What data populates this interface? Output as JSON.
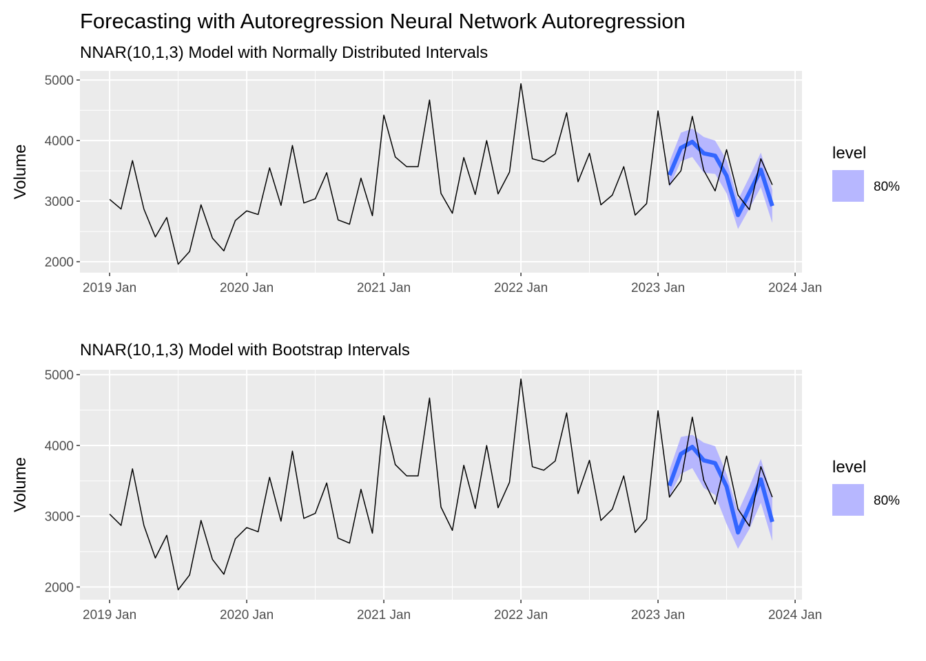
{
  "title": "Forecasting with Autoregression Neural Network Autoregression",
  "colors": {
    "panel_bg": "#EBEBEB",
    "grid": "#FFFFFF",
    "actual_line": "#000000",
    "forecast_line": "#3366FF",
    "interval_fill": "#B3B3FF",
    "interval_fill_alpha": 0.95
  },
  "chart_data": [
    {
      "type": "line",
      "subtitle": "NNAR(10,1,3) Model with Normally Distributed Intervals",
      "ylabel": "Volume",
      "xlabel": "",
      "ylim": [
        1820,
        5150
      ],
      "x_range": [
        "2018-11",
        "2024-01"
      ],
      "y_ticks": [
        "2000",
        "3000",
        "4000",
        "5000"
      ],
      "y_tick_values": [
        2000,
        3000,
        4000,
        5000
      ],
      "x_ticks": [
        "2019 Jan",
        "2020 Jan",
        "2021 Jan",
        "2022 Jan",
        "2023 Jan",
        "2024 Jan"
      ],
      "x_tick_values": [
        "2019-01",
        "2020-01",
        "2021-01",
        "2022-01",
        "2023-01",
        "2024-01"
      ],
      "grid": true,
      "legend": {
        "title": "level",
        "entries": [
          "80%"
        ],
        "position": "right"
      },
      "series": [
        {
          "role": "actual",
          "x": [
            "2019-01",
            "2019-02",
            "2019-03",
            "2019-04",
            "2019-05",
            "2019-06",
            "2019-07",
            "2019-08",
            "2019-09",
            "2019-10",
            "2019-11",
            "2019-12",
            "2020-01",
            "2020-02",
            "2020-03",
            "2020-04",
            "2020-05",
            "2020-06",
            "2020-07",
            "2020-08",
            "2020-09",
            "2020-10",
            "2020-11",
            "2020-12",
            "2021-01",
            "2021-02",
            "2021-03",
            "2021-04",
            "2021-05",
            "2021-06",
            "2021-07",
            "2021-08",
            "2021-09",
            "2021-10",
            "2021-11",
            "2021-12",
            "2022-01",
            "2022-02",
            "2022-03",
            "2022-04",
            "2022-05",
            "2022-06",
            "2022-07",
            "2022-08",
            "2022-09",
            "2022-10",
            "2022-11",
            "2022-12",
            "2023-01",
            "2023-02",
            "2023-03",
            "2023-04",
            "2023-05",
            "2023-06",
            "2023-07",
            "2023-08",
            "2023-09",
            "2023-10",
            "2023-11"
          ],
          "values": [
            3030,
            2870,
            3670,
            2870,
            2410,
            2730,
            1960,
            2170,
            2940,
            2390,
            2180,
            2680,
            2840,
            2780,
            3550,
            2930,
            3920,
            2970,
            3040,
            3470,
            2690,
            2620,
            3380,
            2760,
            4420,
            3730,
            3570,
            3570,
            4670,
            3130,
            2800,
            3720,
            3110,
            4000,
            3120,
            3480,
            4940,
            3700,
            3650,
            3780,
            4460,
            3320,
            3790,
            2940,
            3100,
            3570,
            2770,
            2960,
            4490,
            3270,
            3500,
            4400,
            3510,
            3170,
            3850,
            3100,
            2860,
            3700,
            3270
          ]
        },
        {
          "role": "forecast",
          "x": [
            "2023-02",
            "2023-03",
            "2023-04",
            "2023-05",
            "2023-06",
            "2023-07",
            "2023-08",
            "2023-09",
            "2023-10",
            "2023-11"
          ],
          "values": [
            3430,
            3880,
            3980,
            3790,
            3750,
            3420,
            2770,
            3140,
            3520,
            2920
          ],
          "lower": [
            3230,
            3660,
            3730,
            3470,
            3450,
            3130,
            2540,
            2880,
            3230,
            2640
          ],
          "upper": [
            3650,
            4130,
            4200,
            4060,
            4000,
            3680,
            3020,
            3400,
            3800,
            3190
          ]
        }
      ]
    },
    {
      "type": "line",
      "subtitle": "NNAR(10,1,3) Model with Bootstrap Intervals",
      "ylabel": "Volume",
      "xlabel": "",
      "ylim": [
        1820,
        5070
      ],
      "x_range": [
        "2018-11",
        "2024-01"
      ],
      "y_ticks": [
        "2000",
        "3000",
        "4000",
        "5000"
      ],
      "y_tick_values": [
        2000,
        3000,
        4000,
        5000
      ],
      "x_ticks": [
        "2019 Jan",
        "2020 Jan",
        "2021 Jan",
        "2022 Jan",
        "2023 Jan",
        "2024 Jan"
      ],
      "x_tick_values": [
        "2019-01",
        "2020-01",
        "2021-01",
        "2022-01",
        "2023-01",
        "2024-01"
      ],
      "grid": true,
      "legend": {
        "title": "level",
        "entries": [
          "80%"
        ],
        "position": "right"
      },
      "series": [
        {
          "role": "actual",
          "x": [
            "2019-01",
            "2019-02",
            "2019-03",
            "2019-04",
            "2019-05",
            "2019-06",
            "2019-07",
            "2019-08",
            "2019-09",
            "2019-10",
            "2019-11",
            "2019-12",
            "2020-01",
            "2020-02",
            "2020-03",
            "2020-04",
            "2020-05",
            "2020-06",
            "2020-07",
            "2020-08",
            "2020-09",
            "2020-10",
            "2020-11",
            "2020-12",
            "2021-01",
            "2021-02",
            "2021-03",
            "2021-04",
            "2021-05",
            "2021-06",
            "2021-07",
            "2021-08",
            "2021-09",
            "2021-10",
            "2021-11",
            "2021-12",
            "2022-01",
            "2022-02",
            "2022-03",
            "2022-04",
            "2022-05",
            "2022-06",
            "2022-07",
            "2022-08",
            "2022-09",
            "2022-10",
            "2022-11",
            "2022-12",
            "2023-01",
            "2023-02",
            "2023-03",
            "2023-04",
            "2023-05",
            "2023-06",
            "2023-07",
            "2023-08",
            "2023-09",
            "2023-10",
            "2023-11"
          ],
          "values": [
            3030,
            2870,
            3670,
            2870,
            2410,
            2730,
            1960,
            2170,
            2940,
            2390,
            2180,
            2680,
            2840,
            2780,
            3550,
            2930,
            3920,
            2970,
            3040,
            3470,
            2690,
            2620,
            3380,
            2760,
            4420,
            3730,
            3570,
            3570,
            4670,
            3130,
            2800,
            3720,
            3110,
            4000,
            3120,
            3480,
            4940,
            3700,
            3650,
            3780,
            4460,
            3320,
            3790,
            2940,
            3100,
            3570,
            2770,
            2960,
            4490,
            3270,
            3500,
            4400,
            3510,
            3170,
            3850,
            3100,
            2860,
            3700,
            3270
          ]
        },
        {
          "role": "forecast",
          "x": [
            "2023-02",
            "2023-03",
            "2023-04",
            "2023-05",
            "2023-06",
            "2023-07",
            "2023-08",
            "2023-09",
            "2023-10",
            "2023-11"
          ],
          "values": [
            3430,
            3880,
            3980,
            3790,
            3750,
            3420,
            2770,
            3140,
            3520,
            2920
          ],
          "lower": [
            3280,
            3600,
            3680,
            3400,
            3300,
            2890,
            2540,
            2820,
            3190,
            2650
          ],
          "upper": [
            3650,
            4120,
            4150,
            4040,
            3990,
            3600,
            3060,
            3420,
            3810,
            3260
          ]
        }
      ]
    }
  ]
}
